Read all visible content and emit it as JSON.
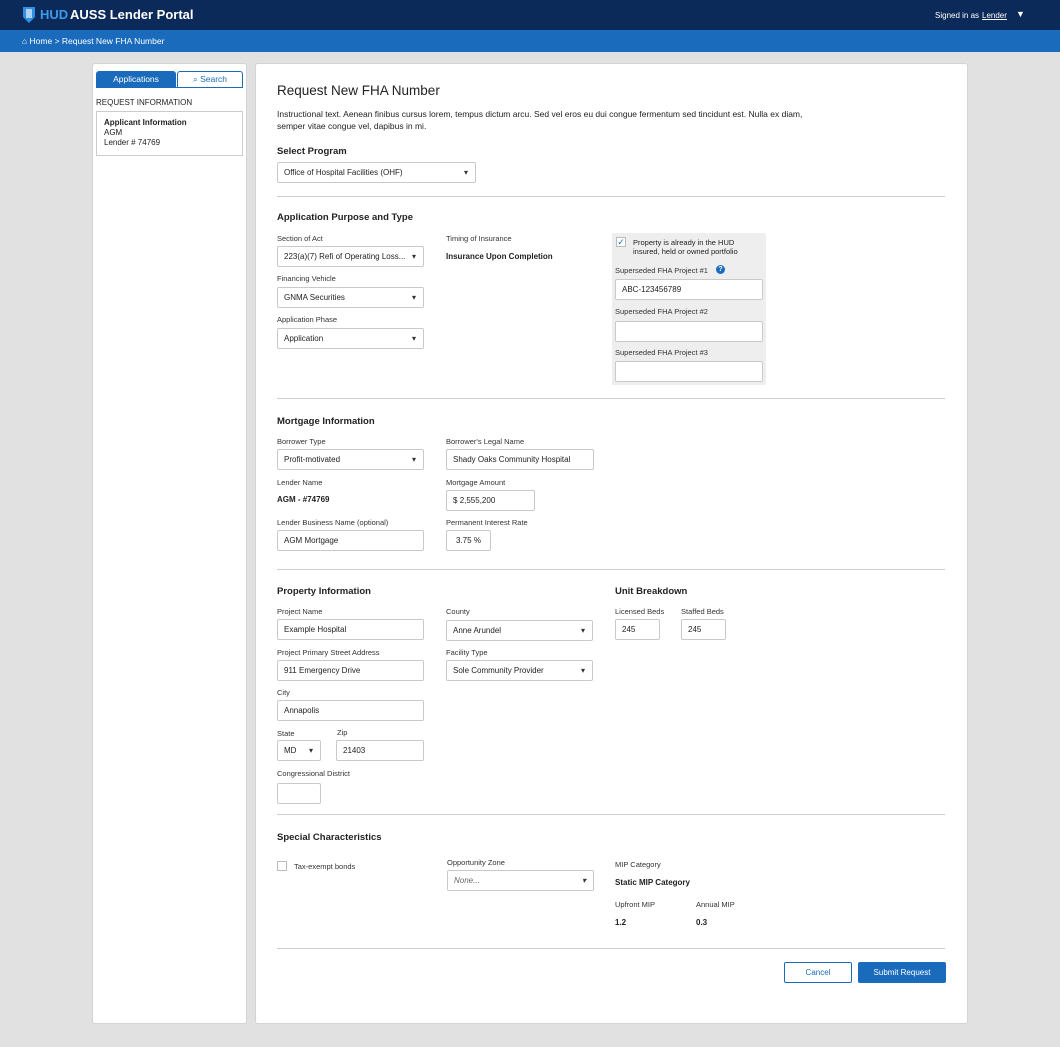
{
  "header": {
    "brand": "HUD",
    "title": "AUSS Lender Portal",
    "signed_in": "Signed in as",
    "user": "Lender"
  },
  "breadcrumb": {
    "home": "Home",
    "current": "> Request New FHA Number"
  },
  "sidebar": {
    "tabs": [
      "Applications",
      "Search"
    ],
    "section": "REQUEST INFORMATION",
    "card": {
      "title": "Applicant Information",
      "line1": "AGM",
      "line2": "Lender # 74769"
    }
  },
  "page": {
    "title": "Request New FHA Number",
    "instructions": "Instructional text. Aenean finibus cursus lorem, tempus dictum arcu. Sed vel eros eu dui congue fermentum sed tincidunt est. Nulla ex diam, semper vitae congue vel, dapibus in mi."
  },
  "program": {
    "heading": "Select Program",
    "value": "Office of Hospital Facilities (OHF)"
  },
  "purpose": {
    "heading": "Application Purpose and Type",
    "section_label": "Section of Act",
    "section_value": "223(a)(7) Refi of Operating Loss...",
    "vehicle_label": "Financing Vehicle",
    "vehicle_value": "GNMA Securities",
    "phase_label": "Application Phase",
    "phase_value": "Application",
    "timing_label": "Timing of Insurance",
    "timing_value": "Insurance Upon Completion",
    "portfolio_checked": true,
    "portfolio_label": "Property is already in the HUD insured, held or owned portfolio",
    "sup1_label": "Superseded FHA Project #1",
    "sup1_value": "ABC-123456789",
    "sup2_label": "Superseded FHA Project #2",
    "sup2_value": "",
    "sup3_label": "Superseded FHA Project #3",
    "sup3_value": ""
  },
  "mortgage": {
    "heading": "Mortgage Information",
    "borrower_type_label": "Borrower Type",
    "borrower_type": "Profit-motivated",
    "legal_name_label": "Borrower's Legal Name",
    "legal_name": "Shady Oaks Community Hospital",
    "lender_name_label": "Lender Name",
    "lender_name": "AGM - #74769",
    "amount_label": "Mortgage Amount",
    "currency": "$",
    "amount": "2,555,200",
    "business_label": "Lender Business Name (optional)",
    "business": "AGM Mortgage",
    "rate_label": "Permanent Interest Rate",
    "rate": "3.75",
    "pct": "%"
  },
  "property": {
    "heading": "Property Information",
    "project_label": "Project Name",
    "project": "Example Hospital",
    "address_label": "Project Primary Street Address",
    "address": "911 Emergency Drive",
    "city_label": "City",
    "city": "Annapolis",
    "state_label": "State",
    "state": "MD",
    "zip_label": "Zip",
    "zip": "21403",
    "district_label": "Congressional District",
    "district": "",
    "county_label": "County",
    "county": "Anne Arundel",
    "facility_label": "Facility Type",
    "facility": "Sole Community Provider"
  },
  "units": {
    "heading": "Unit Breakdown",
    "licensed_label": "Licensed Beds",
    "licensed": "245",
    "staffed_label": "Staffed Beds",
    "staffed": "245"
  },
  "special": {
    "heading": "Special Characteristics",
    "tax_label": "Tax-exempt bonds",
    "tax_checked": false,
    "oz_label": "Opportunity Zone",
    "oz_placeholder": "None...",
    "mip_label": "MIP Category",
    "mip_value": "Static MIP Category",
    "upfront_label": "Upfront MIP",
    "upfront": "1.2",
    "annual_label": "Annual MIP",
    "annual": "0.3"
  },
  "actions": {
    "cancel": "Cancel",
    "submit": "Submit Request"
  },
  "colors": {
    "navy": "#0c2a59",
    "blue": "#1b6bbd"
  }
}
